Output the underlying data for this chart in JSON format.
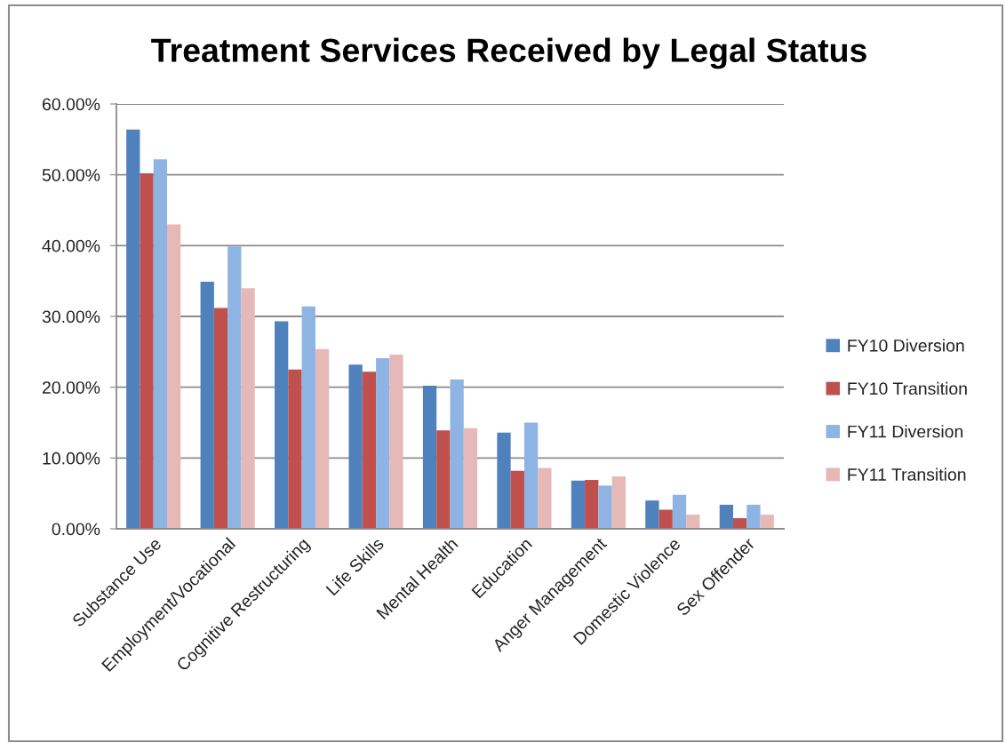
{
  "chart_data": {
    "type": "bar",
    "title": "Treatment Services Received by Legal Status",
    "categories": [
      "Substance Use",
      "Employment/Vocational",
      "Cognitive Restructuring",
      "Life Skills",
      "Mental Health",
      "Education",
      "Anger Management",
      "Domestic Violence",
      "Sex Offender"
    ],
    "series": [
      {
        "name": "FY10 Diversion",
        "color": "#4f81bd",
        "values": [
          56.4,
          34.9,
          29.3,
          23.2,
          20.2,
          13.6,
          6.8,
          4.0,
          3.4
        ]
      },
      {
        "name": "FY10 Transition",
        "color": "#c0504d",
        "values": [
          50.2,
          31.2,
          22.5,
          22.2,
          13.9,
          8.2,
          6.9,
          2.7,
          1.5
        ]
      },
      {
        "name": "FY11 Diversion",
        "color": "#8eb4e3",
        "values": [
          52.2,
          39.9,
          31.4,
          24.1,
          21.1,
          15.0,
          6.1,
          4.8,
          3.4
        ]
      },
      {
        "name": "FY11 Transition",
        "color": "#e6b9b8",
        "values": [
          43.0,
          34.0,
          25.4,
          24.6,
          14.2,
          8.6,
          7.4,
          2.0,
          2.0
        ]
      }
    ],
    "ylim": [
      0,
      60
    ],
    "yticks": [
      {
        "value": 0,
        "label": "0.00%"
      },
      {
        "value": 10,
        "label": "10.00%"
      },
      {
        "value": 20,
        "label": "20.00%"
      },
      {
        "value": 30,
        "label": "30.00%"
      },
      {
        "value": 40,
        "label": "40.00%"
      },
      {
        "value": 50,
        "label": "50.00%"
      },
      {
        "value": 60,
        "label": "60.00%"
      }
    ],
    "grid": "y",
    "legend": "right"
  }
}
